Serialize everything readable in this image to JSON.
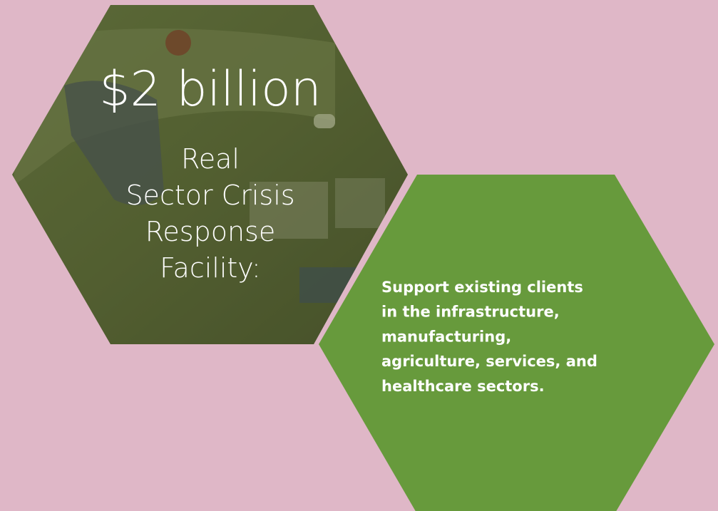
{
  "amount": "$2 billion",
  "facility_lines": [
    "Real",
    "Sector Crisis",
    "Response",
    "Facility:"
  ],
  "description_lines": [
    "Support existing clients",
    "in the infrastructure,",
    "manufacturing,",
    "agriculture, services, and",
    "healthcare sectors."
  ]
}
